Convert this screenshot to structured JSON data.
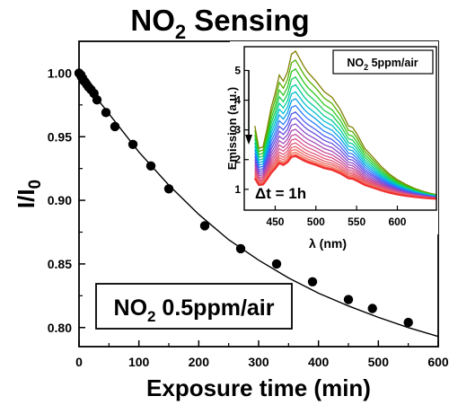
{
  "chart_data": [
    {
      "type": "scatter",
      "title": "NO2 Sensing",
      "title_main": "NO",
      "title_sub": "2",
      "title_rest": " Sensing",
      "xlabel": "Exposure time (min)",
      "ylabel_main": "I/I",
      "ylabel_sub": "0",
      "xlim": [
        0,
        600
      ],
      "ylim": [
        0.785,
        1.025
      ],
      "xticks": [
        0,
        100,
        200,
        300,
        400,
        500,
        600
      ],
      "yticks": [
        0.8,
        0.85,
        0.9,
        0.95,
        1.0
      ],
      "yticklabels": [
        "0.80",
        "0.85",
        "0.90",
        "0.95",
        "1.00"
      ],
      "annotation_main": "NO",
      "annotation_sub": "2",
      "annotation_rest": " 0.5ppm/air",
      "series": [
        {
          "marker": "filled-circle",
          "color": "#000000",
          "x": [
            0,
            2,
            4,
            6,
            8,
            10,
            13,
            16,
            20,
            25,
            30,
            45,
            60,
            90,
            120,
            150,
            210,
            270,
            330,
            390,
            450,
            490,
            550
          ],
          "y": [
            1.0,
            0.999,
            0.997,
            0.996,
            0.994,
            0.993,
            0.991,
            0.989,
            0.987,
            0.984,
            0.979,
            0.969,
            0.958,
            0.944,
            0.927,
            0.909,
            0.88,
            0.862,
            0.85,
            0.836,
            0.822,
            0.815,
            0.804
          ]
        }
      ],
      "fit_line": {
        "color": "#000000",
        "x": [
          0,
          10,
          30,
          60,
          100,
          150,
          200,
          250,
          300,
          350,
          400,
          450,
          500,
          550,
          600
        ],
        "y": [
          1.0,
          0.994,
          0.98,
          0.962,
          0.938,
          0.912,
          0.889,
          0.869,
          0.853,
          0.839,
          0.827,
          0.817,
          0.808,
          0.8,
          0.793
        ]
      }
    },
    {
      "type": "line",
      "xlabel": "λ (nm)",
      "ylabel": "Emission (a.u.)",
      "xlim": [
        412,
        648
      ],
      "ylim": [
        0.3,
        5.8
      ],
      "xticks": [
        450,
        500,
        550,
        600
      ],
      "yticks": [
        1,
        2,
        3,
        4,
        5
      ],
      "legend_main": "NO",
      "legend_sub": "2",
      "legend_rest": " 5ppm/air",
      "annotation": "Δt = 1h",
      "curve_shape": {
        "x": [
          425,
          430,
          435,
          440,
          445,
          450,
          455,
          460,
          465,
          470,
          475,
          480,
          485,
          490,
          500,
          510,
          520,
          530,
          540,
          545,
          550,
          560,
          570,
          580,
          590,
          600,
          610,
          620,
          630,
          640,
          648
        ],
        "y": [
          0.5,
          0.35,
          0.36,
          0.48,
          0.62,
          0.72,
          0.84,
          0.8,
          0.86,
          0.98,
          1.0,
          0.95,
          0.9,
          0.86,
          0.8,
          0.73,
          0.69,
          0.61,
          0.5,
          0.49,
          0.45,
          0.35,
          0.29,
          0.23,
          0.18,
          0.14,
          0.11,
          0.085,
          0.065,
          0.05,
          0.04
        ]
      },
      "series_peaks": [
        5.65,
        5.35,
        5.05,
        4.78,
        4.52,
        4.28,
        4.05,
        3.82,
        3.6,
        3.4,
        3.2,
        3.02,
        2.85,
        2.7,
        2.56,
        2.44,
        2.34,
        2.25,
        2.18,
        2.12
      ],
      "series_colors": [
        "#7f7f00",
        "#55b000",
        "#2ec81e",
        "#19cf57",
        "#00cc99",
        "#00bfd0",
        "#00a0e6",
        "#2a7cff",
        "#4a5cf2",
        "#6a4ee0",
        "#8a4ccc",
        "#a84ab4",
        "#c44c9a",
        "#d95088",
        "#e2587a",
        "#e8606c",
        "#ee6a66",
        "#f2705e",
        "#f46050",
        "#f03030"
      ]
    }
  ]
}
